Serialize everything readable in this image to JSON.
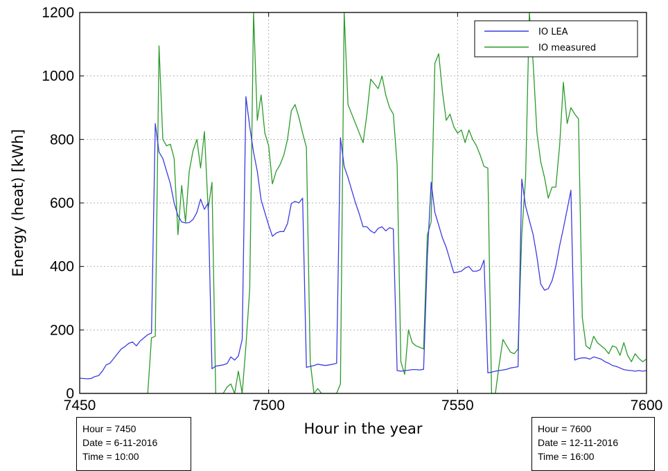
{
  "chart_data": {
    "type": "line",
    "xlabel": "Hour in the year",
    "ylabel": "Energy (heat)  [kWh]",
    "xlim": [
      7450,
      7600
    ],
    "ylim": [
      0,
      1200
    ],
    "xticks": [
      7450,
      7500,
      7550,
      7600
    ],
    "yticks": [
      0,
      200,
      400,
      600,
      800,
      1000,
      1200
    ],
    "grid": true,
    "legend_position": "top-right",
    "series": [
      {
        "name": "IO LEA",
        "color": "#3a3adf",
        "points": [
          [
            7450,
            48
          ],
          [
            7451,
            47
          ],
          [
            7452,
            46
          ],
          [
            7453,
            47
          ],
          [
            7454,
            53
          ],
          [
            7455,
            56
          ],
          [
            7456,
            70
          ],
          [
            7457,
            90
          ],
          [
            7458,
            95
          ],
          [
            7459,
            110
          ],
          [
            7460,
            125
          ],
          [
            7461,
            140
          ],
          [
            7462,
            148
          ],
          [
            7463,
            158
          ],
          [
            7464,
            162
          ],
          [
            7465,
            150
          ],
          [
            7466,
            165
          ],
          [
            7467,
            175
          ],
          [
            7468,
            185
          ],
          [
            7469,
            190
          ],
          [
            7470,
            850
          ],
          [
            7471,
            760
          ],
          [
            7472,
            740
          ],
          [
            7473,
            700
          ],
          [
            7474,
            660
          ],
          [
            7475,
            600
          ],
          [
            7476,
            560
          ],
          [
            7477,
            540
          ],
          [
            7478,
            537
          ],
          [
            7479,
            538
          ],
          [
            7480,
            548
          ],
          [
            7481,
            570
          ],
          [
            7482,
            612
          ],
          [
            7483,
            580
          ],
          [
            7484,
            600
          ],
          [
            7485,
            78
          ],
          [
            7486,
            86
          ],
          [
            7487,
            88
          ],
          [
            7488,
            90
          ],
          [
            7489,
            94
          ],
          [
            7490,
            115
          ],
          [
            7491,
            105
          ],
          [
            7492,
            118
          ],
          [
            7493,
            170
          ],
          [
            7494,
            935
          ],
          [
            7495,
            840
          ],
          [
            7496,
            760
          ],
          [
            7497,
            700
          ],
          [
            7498,
            610
          ],
          [
            7499,
            570
          ],
          [
            7500,
            530
          ],
          [
            7501,
            495
          ],
          [
            7502,
            505
          ],
          [
            7503,
            510
          ],
          [
            7504,
            510
          ],
          [
            7505,
            535
          ],
          [
            7506,
            598
          ],
          [
            7507,
            605
          ],
          [
            7508,
            600
          ],
          [
            7509,
            615
          ],
          [
            7510,
            82
          ],
          [
            7511,
            85
          ],
          [
            7512,
            88
          ],
          [
            7513,
            92
          ],
          [
            7514,
            90
          ],
          [
            7515,
            88
          ],
          [
            7516,
            90
          ],
          [
            7517,
            92
          ],
          [
            7518,
            95
          ],
          [
            7519,
            805
          ],
          [
            7520,
            715
          ],
          [
            7521,
            680
          ],
          [
            7522,
            640
          ],
          [
            7523,
            600
          ],
          [
            7524,
            565
          ],
          [
            7525,
            525
          ],
          [
            7526,
            525
          ],
          [
            7527,
            512
          ],
          [
            7528,
            505
          ],
          [
            7529,
            520
          ],
          [
            7530,
            525
          ],
          [
            7531,
            512
          ],
          [
            7532,
            522
          ],
          [
            7533,
            518
          ],
          [
            7534,
            72
          ],
          [
            7535,
            70
          ],
          [
            7536,
            72
          ],
          [
            7537,
            73
          ],
          [
            7538,
            75
          ],
          [
            7539,
            75
          ],
          [
            7540,
            74
          ],
          [
            7541,
            76
          ],
          [
            7542,
            430
          ],
          [
            7543,
            665
          ],
          [
            7544,
            570
          ],
          [
            7545,
            530
          ],
          [
            7546,
            490
          ],
          [
            7547,
            460
          ],
          [
            7548,
            420
          ],
          [
            7549,
            380
          ],
          [
            7550,
            382
          ],
          [
            7551,
            385
          ],
          [
            7552,
            395
          ],
          [
            7553,
            400
          ],
          [
            7554,
            385
          ],
          [
            7555,
            385
          ],
          [
            7556,
            390
          ],
          [
            7557,
            420
          ],
          [
            7558,
            65
          ],
          [
            7559,
            67
          ],
          [
            7560,
            70
          ],
          [
            7561,
            72
          ],
          [
            7562,
            74
          ],
          [
            7563,
            76
          ],
          [
            7564,
            80
          ],
          [
            7565,
            82
          ],
          [
            7566,
            84
          ],
          [
            7567,
            675
          ],
          [
            7568,
            590
          ],
          [
            7569,
            545
          ],
          [
            7570,
            500
          ],
          [
            7571,
            430
          ],
          [
            7572,
            345
          ],
          [
            7573,
            325
          ],
          [
            7574,
            330
          ],
          [
            7575,
            355
          ],
          [
            7576,
            400
          ],
          [
            7577,
            465
          ],
          [
            7578,
            520
          ],
          [
            7579,
            580
          ],
          [
            7580,
            640
          ],
          [
            7581,
            105
          ],
          [
            7582,
            110
          ],
          [
            7583,
            112
          ],
          [
            7584,
            112
          ],
          [
            7585,
            108
          ],
          [
            7586,
            115
          ],
          [
            7587,
            112
          ],
          [
            7588,
            108
          ],
          [
            7589,
            100
          ],
          [
            7590,
            95
          ],
          [
            7591,
            88
          ],
          [
            7592,
            85
          ],
          [
            7593,
            80
          ],
          [
            7594,
            75
          ],
          [
            7595,
            73
          ],
          [
            7596,
            72
          ],
          [
            7597,
            70
          ],
          [
            7598,
            72
          ],
          [
            7599,
            70
          ],
          [
            7600,
            72
          ]
        ]
      },
      {
        "name": "IO measured",
        "color": "#2a9a2a",
        "points": [
          [
            7450,
            0
          ],
          [
            7468,
            0
          ],
          [
            7469,
            175
          ],
          [
            7470,
            180
          ],
          [
            7471,
            1095
          ],
          [
            7472,
            800
          ],
          [
            7473,
            780
          ],
          [
            7474,
            785
          ],
          [
            7475,
            740
          ],
          [
            7476,
            500
          ],
          [
            7477,
            655
          ],
          [
            7478,
            540
          ],
          [
            7479,
            700
          ],
          [
            7480,
            765
          ],
          [
            7481,
            800
          ],
          [
            7482,
            710
          ],
          [
            7483,
            825
          ],
          [
            7484,
            580
          ],
          [
            7485,
            665
          ],
          [
            7486,
            0
          ],
          [
            7487,
            0
          ],
          [
            7488,
            0
          ],
          [
            7489,
            20
          ],
          [
            7490,
            30
          ],
          [
            7491,
            0
          ],
          [
            7492,
            70
          ],
          [
            7493,
            0
          ],
          [
            7494,
            150
          ],
          [
            7495,
            330
          ],
          [
            7496,
            1200
          ],
          [
            7497,
            860
          ],
          [
            7498,
            940
          ],
          [
            7499,
            820
          ],
          [
            7500,
            780
          ],
          [
            7501,
            660
          ],
          [
            7502,
            700
          ],
          [
            7503,
            720
          ],
          [
            7504,
            750
          ],
          [
            7505,
            800
          ],
          [
            7506,
            890
          ],
          [
            7507,
            910
          ],
          [
            7508,
            870
          ],
          [
            7509,
            820
          ],
          [
            7510,
            775
          ],
          [
            7511,
            100
          ],
          [
            7512,
            0
          ],
          [
            7513,
            15
          ],
          [
            7514,
            0
          ],
          [
            7515,
            0
          ],
          [
            7516,
            0
          ],
          [
            7517,
            0
          ],
          [
            7518,
            0
          ],
          [
            7519,
            30
          ],
          [
            7520,
            1200
          ],
          [
            7521,
            910
          ],
          [
            7522,
            880
          ],
          [
            7523,
            850
          ],
          [
            7524,
            820
          ],
          [
            7525,
            790
          ],
          [
            7526,
            880
          ],
          [
            7527,
            990
          ],
          [
            7528,
            975
          ],
          [
            7529,
            960
          ],
          [
            7530,
            1000
          ],
          [
            7531,
            940
          ],
          [
            7532,
            900
          ],
          [
            7533,
            880
          ],
          [
            7534,
            720
          ],
          [
            7535,
            100
          ],
          [
            7536,
            60
          ],
          [
            7537,
            200
          ],
          [
            7538,
            160
          ],
          [
            7539,
            150
          ],
          [
            7540,
            145
          ],
          [
            7541,
            140
          ],
          [
            7542,
            500
          ],
          [
            7543,
            540
          ],
          [
            7544,
            1040
          ],
          [
            7545,
            1070
          ],
          [
            7546,
            950
          ],
          [
            7547,
            860
          ],
          [
            7548,
            880
          ],
          [
            7549,
            840
          ],
          [
            7550,
            820
          ],
          [
            7551,
            830
          ],
          [
            7552,
            790
          ],
          [
            7553,
            830
          ],
          [
            7554,
            800
          ],
          [
            7555,
            780
          ],
          [
            7556,
            750
          ],
          [
            7557,
            715
          ],
          [
            7558,
            710
          ],
          [
            7559,
            0
          ],
          [
            7560,
            0
          ],
          [
            7561,
            90
          ],
          [
            7562,
            170
          ],
          [
            7563,
            150
          ],
          [
            7564,
            130
          ],
          [
            7565,
            125
          ],
          [
            7566,
            140
          ],
          [
            7567,
            500
          ],
          [
            7568,
            680
          ],
          [
            7569,
            1200
          ],
          [
            7570,
            1040
          ],
          [
            7571,
            820
          ],
          [
            7572,
            730
          ],
          [
            7573,
            680
          ],
          [
            7574,
            615
          ],
          [
            7575,
            650
          ],
          [
            7576,
            650
          ],
          [
            7577,
            780
          ],
          [
            7578,
            980
          ],
          [
            7579,
            850
          ],
          [
            7580,
            900
          ],
          [
            7581,
            880
          ],
          [
            7582,
            865
          ],
          [
            7583,
            240
          ],
          [
            7584,
            150
          ],
          [
            7585,
            140
          ],
          [
            7586,
            180
          ],
          [
            7587,
            160
          ],
          [
            7588,
            150
          ],
          [
            7589,
            140
          ],
          [
            7590,
            125
          ],
          [
            7591,
            150
          ],
          [
            7592,
            145
          ],
          [
            7593,
            120
          ],
          [
            7594,
            160
          ],
          [
            7595,
            120
          ],
          [
            7596,
            100
          ],
          [
            7597,
            125
          ],
          [
            7598,
            110
          ],
          [
            7599,
            100
          ],
          [
            7600,
            108
          ]
        ]
      }
    ]
  },
  "notes": [
    {
      "lines": [
        "Hour = 7450",
        "Date = 6-11-2016",
        "Time = 10:00"
      ]
    },
    {
      "lines": [
        "Hour = 7600",
        "Date = 12-11-2016",
        "Time = 16:00"
      ]
    }
  ]
}
